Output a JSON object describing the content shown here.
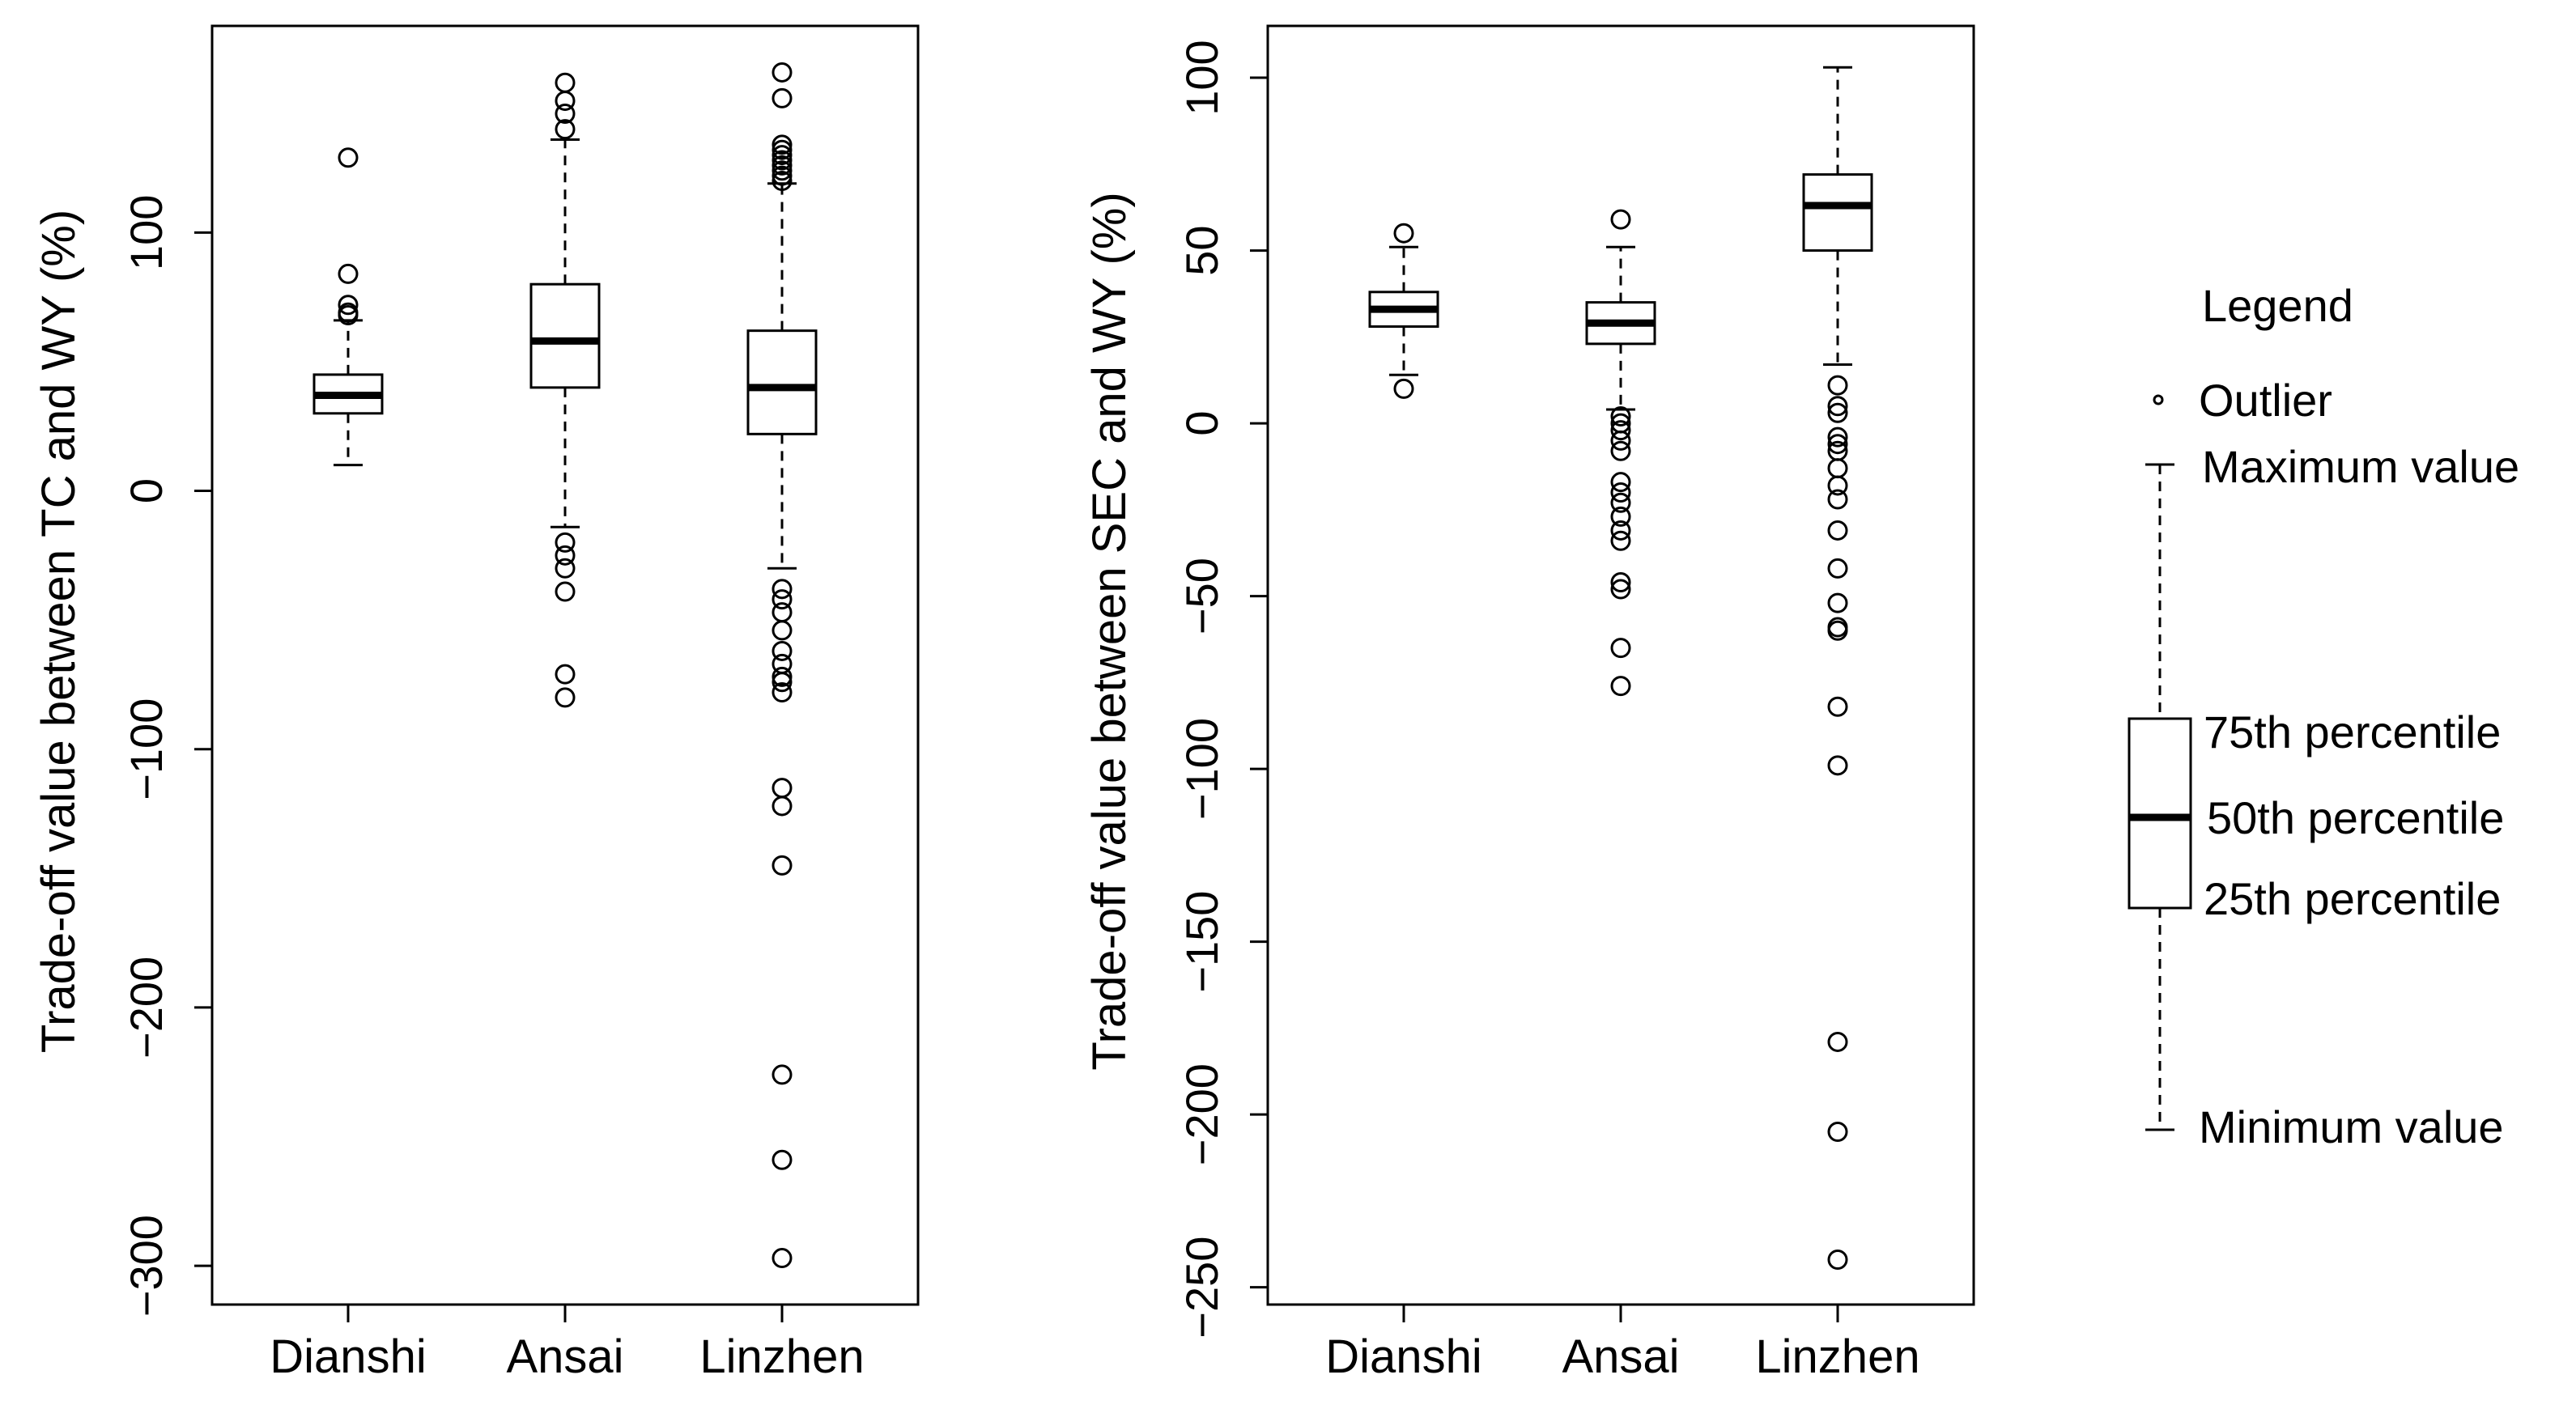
{
  "chart_data": [
    {
      "type": "box",
      "ylabel": "Trade-off value between TC and WY (%)",
      "ylim": [
        -315,
        180
      ],
      "yticks": [
        100,
        0,
        -100,
        -200,
        -300
      ],
      "categories": [
        "Dianshi",
        "Ansai",
        "Linzhen"
      ],
      "boxes": [
        {
          "category": "Dianshi",
          "min": 10,
          "q1": 30,
          "median": 37,
          "q3": 45,
          "max": 66,
          "outliers": [
            129,
            84,
            72,
            69,
            68
          ]
        },
        {
          "category": "Ansai",
          "min": -14,
          "q1": 40,
          "median": 58,
          "q3": 80,
          "max": 136,
          "outliers": [
            158,
            151,
            146,
            140,
            -20,
            -25,
            -30,
            -39,
            -71,
            -80
          ]
        },
        {
          "category": "Linzhen",
          "min": -30,
          "q1": 22,
          "median": 40,
          "q3": 62,
          "max": 119,
          "outliers": [
            162,
            152,
            134,
            132,
            130,
            128,
            126,
            124,
            122,
            120,
            -38,
            -42,
            -47,
            -54,
            -62,
            -67,
            -72,
            -74,
            -78,
            -115,
            -122,
            -145,
            -226,
            -259,
            -297
          ]
        }
      ]
    },
    {
      "type": "box",
      "ylabel": "Trade-off value between SEC and WY (%)",
      "ylim": [
        -255,
        115
      ],
      "yticks": [
        100,
        50,
        0,
        -50,
        -100,
        -150,
        -200,
        -250
      ],
      "categories": [
        "Dianshi",
        "Ansai",
        "Linzhen"
      ],
      "boxes": [
        {
          "category": "Dianshi",
          "min": 14,
          "q1": 28,
          "median": 33,
          "q3": 38,
          "max": 51,
          "outliers": [
            55,
            10
          ]
        },
        {
          "category": "Ansai",
          "min": 4,
          "q1": 23,
          "median": 29,
          "q3": 35,
          "max": 51,
          "outliers": [
            59,
            2,
            0,
            -2,
            -5,
            -8,
            -17,
            -20,
            -23,
            -27,
            -31,
            -34,
            -46,
            -48,
            -65,
            -76
          ]
        },
        {
          "category": "Linzhen",
          "min": 17,
          "q1": 50,
          "median": 63,
          "q3": 72,
          "max": 103,
          "outliers": [
            11,
            5,
            3,
            -4,
            -6,
            -8,
            -13,
            -18,
            -22,
            -31,
            -42,
            -52,
            -59,
            -60,
            -82,
            -99,
            -179,
            -205,
            -242
          ]
        }
      ]
    }
  ],
  "legend": {
    "title": "Legend",
    "outlier": "Outlier",
    "maximum": "Maximum value",
    "p75": "75th percentile",
    "p50": "50th percentile",
    "p25": "25th percentile",
    "minimum": "Minimum value"
  }
}
